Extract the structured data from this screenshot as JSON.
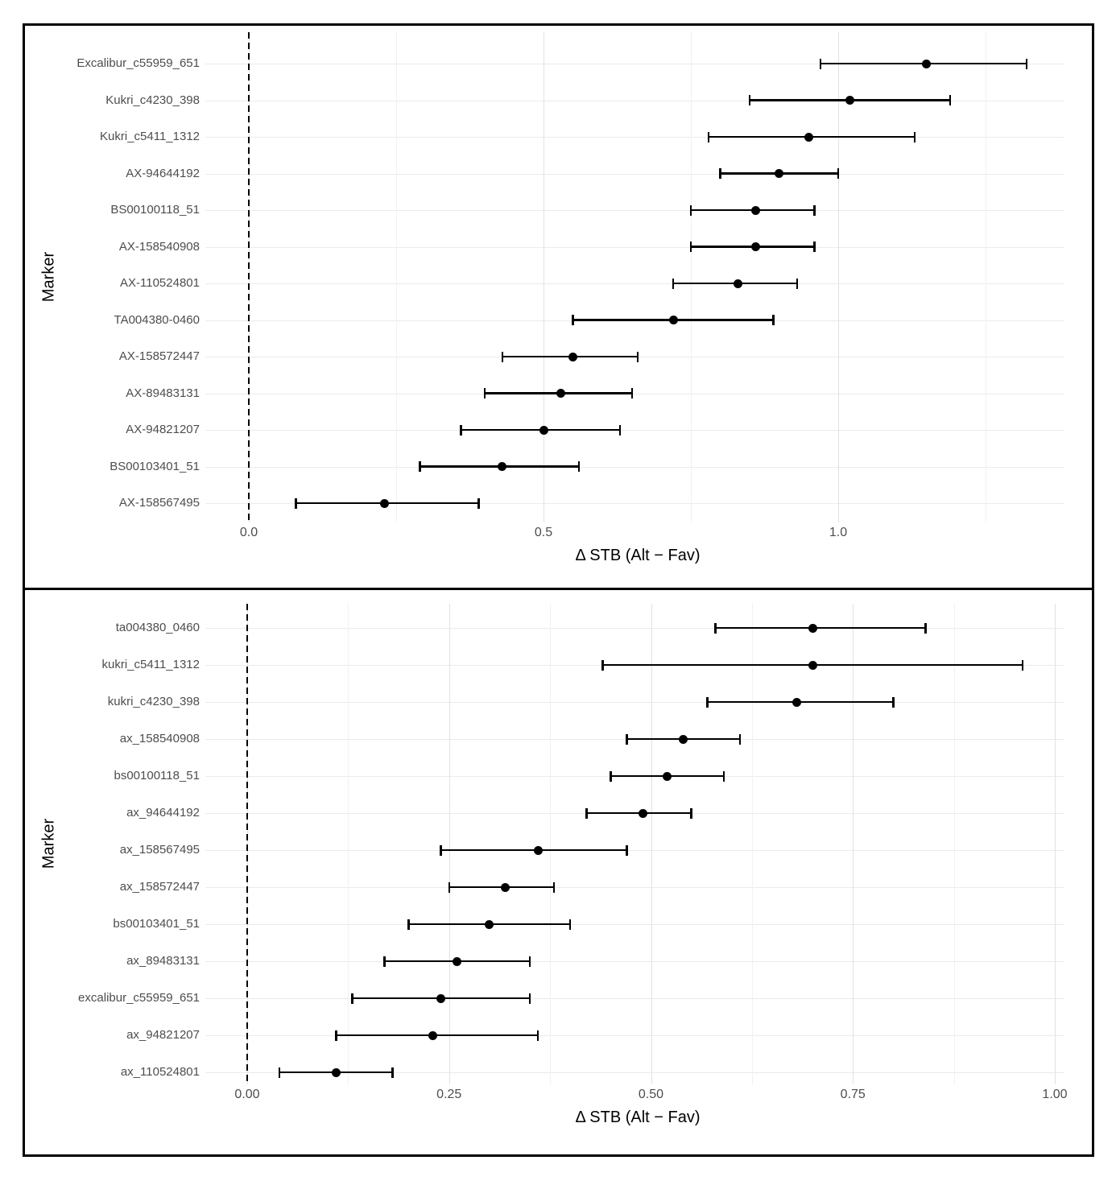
{
  "chart_data": [
    {
      "type": "scatter",
      "subtype": "forest-plot-dot-with-error-bars",
      "orientation": "horizontal",
      "position": "top-panel",
      "title": "",
      "xlabel": "Δ STB (Alt − Fav)",
      "ylabel": "Marker",
      "x_tick_labels": [
        "0.0",
        "0.5",
        "1.0"
      ],
      "x_tick_values": [
        0,
        0.5,
        1.0
      ],
      "x_minor_gridlines": [
        0.25,
        0.75,
        1.25
      ],
      "xlim": [
        -0.07,
        1.38
      ],
      "grid": true,
      "legend": "none",
      "zero_reference_line": {
        "x": 0,
        "style": "dashed",
        "color": "#000000"
      },
      "points": [
        {
          "label": "Excalibur_c55959_651",
          "estimate": 1.15,
          "ci_low": 0.97,
          "ci_high": 1.32
        },
        {
          "label": "Kukri_c4230_398",
          "estimate": 1.02,
          "ci_low": 0.85,
          "ci_high": 1.19
        },
        {
          "label": "Kukri_c5411_1312",
          "estimate": 0.95,
          "ci_low": 0.78,
          "ci_high": 1.13
        },
        {
          "label": "AX-94644192",
          "estimate": 0.9,
          "ci_low": 0.8,
          "ci_high": 1.0
        },
        {
          "label": "BS00100118_51",
          "estimate": 0.86,
          "ci_low": 0.75,
          "ci_high": 0.96
        },
        {
          "label": "AX-158540908",
          "estimate": 0.86,
          "ci_low": 0.75,
          "ci_high": 0.96
        },
        {
          "label": "AX-110524801",
          "estimate": 0.83,
          "ci_low": 0.72,
          "ci_high": 0.93
        },
        {
          "label": "TA004380-0460",
          "estimate": 0.72,
          "ci_low": 0.55,
          "ci_high": 0.89
        },
        {
          "label": "AX-158572447",
          "estimate": 0.55,
          "ci_low": 0.43,
          "ci_high": 0.66
        },
        {
          "label": "AX-89483131",
          "estimate": 0.53,
          "ci_low": 0.4,
          "ci_high": 0.65
        },
        {
          "label": "AX-94821207",
          "estimate": 0.5,
          "ci_low": 0.36,
          "ci_high": 0.63
        },
        {
          "label": "BS00103401_51",
          "estimate": 0.43,
          "ci_low": 0.29,
          "ci_high": 0.56
        },
        {
          "label": "AX-158567495",
          "estimate": 0.23,
          "ci_low": 0.08,
          "ci_high": 0.39
        }
      ]
    },
    {
      "type": "scatter",
      "subtype": "forest-plot-dot-with-error-bars",
      "orientation": "horizontal",
      "position": "bottom-panel",
      "title": "",
      "xlabel": "Δ STB (Alt − Fav)",
      "ylabel": "Marker",
      "x_tick_labels": [
        "0.00",
        "0.25",
        "0.50",
        "0.75",
        "1.00"
      ],
      "x_tick_values": [
        0,
        0.25,
        0.5,
        0.75,
        1.0
      ],
      "x_minor_gridlines": [
        0.125,
        0.375,
        0.625,
        0.875
      ],
      "xlim": [
        -0.05,
        1.01
      ],
      "grid": true,
      "legend": "none",
      "zero_reference_line": {
        "x": 0,
        "style": "dashed",
        "color": "#000000"
      },
      "points": [
        {
          "label": "ta004380_0460",
          "estimate": 0.7,
          "ci_low": 0.58,
          "ci_high": 0.84
        },
        {
          "label": "kukri_c5411_1312",
          "estimate": 0.7,
          "ci_low": 0.44,
          "ci_high": 0.96
        },
        {
          "label": "kukri_c4230_398",
          "estimate": 0.68,
          "ci_low": 0.57,
          "ci_high": 0.8
        },
        {
          "label": "ax_158540908",
          "estimate": 0.54,
          "ci_low": 0.47,
          "ci_high": 0.61
        },
        {
          "label": "bs00100118_51",
          "estimate": 0.52,
          "ci_low": 0.45,
          "ci_high": 0.59
        },
        {
          "label": "ax_94644192",
          "estimate": 0.49,
          "ci_low": 0.42,
          "ci_high": 0.55
        },
        {
          "label": "ax_158567495",
          "estimate": 0.36,
          "ci_low": 0.24,
          "ci_high": 0.47
        },
        {
          "label": "ax_158572447",
          "estimate": 0.32,
          "ci_low": 0.25,
          "ci_high": 0.38
        },
        {
          "label": "bs00103401_51",
          "estimate": 0.3,
          "ci_low": 0.2,
          "ci_high": 0.4
        },
        {
          "label": "ax_89483131",
          "estimate": 0.26,
          "ci_low": 0.17,
          "ci_high": 0.35
        },
        {
          "label": "excalibur_c55959_651",
          "estimate": 0.24,
          "ci_low": 0.13,
          "ci_high": 0.35
        },
        {
          "label": "ax_94821207",
          "estimate": 0.23,
          "ci_low": 0.11,
          "ci_high": 0.36
        },
        {
          "label": "ax_110524801",
          "estimate": 0.11,
          "ci_low": 0.04,
          "ci_high": 0.18
        }
      ]
    }
  ],
  "colors": {
    "background": "#ffffff",
    "figure_border": "#000000",
    "point": "#000000",
    "error_bar": "#000000",
    "gridline_major": "#e2e2e2",
    "gridline_minor": "#f1f1f1",
    "gridline_horizontal": "#ebebeb",
    "axis_text": "#4d4d4d",
    "axis_title": "#000000",
    "zero_line": "#000000"
  }
}
